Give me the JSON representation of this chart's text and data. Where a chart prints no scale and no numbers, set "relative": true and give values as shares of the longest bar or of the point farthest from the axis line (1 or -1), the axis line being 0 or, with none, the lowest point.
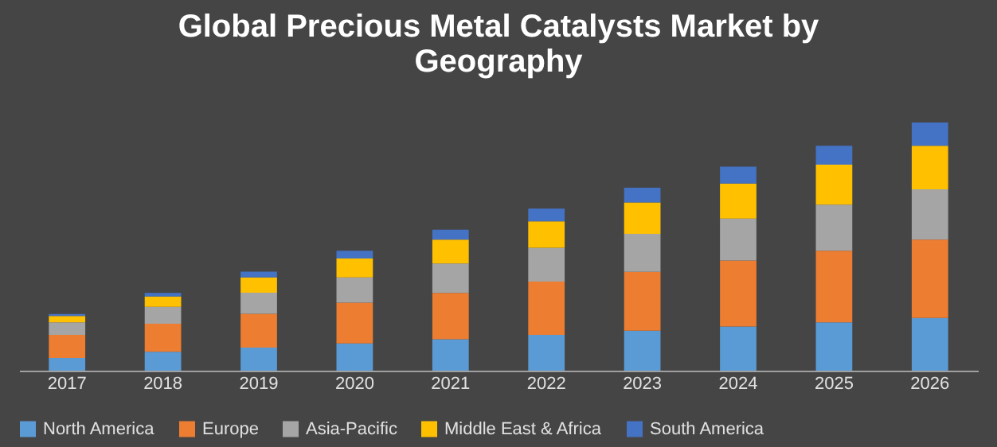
{
  "chart_data": {
    "type": "bar",
    "title": "Global Precious Metal Catalysts Market by Geography",
    "stacked": true,
    "relative": true,
    "legend": "bottom",
    "categories": [
      "2017",
      "2018",
      "2019",
      "2020",
      "2021",
      "2022",
      "2023",
      "2024",
      "2025",
      "2026"
    ],
    "series": [
      {
        "name": "North America",
        "color": "#5b9bd5",
        "values": [
          0.051,
          0.076,
          0.093,
          0.11,
          0.127,
          0.144,
          0.161,
          0.178,
          0.195,
          0.212
        ]
      },
      {
        "name": "Europe",
        "color": "#ed7d31",
        "values": [
          0.093,
          0.113,
          0.136,
          0.164,
          0.186,
          0.215,
          0.237,
          0.266,
          0.288,
          0.316
        ]
      },
      {
        "name": "Asia-Pacific",
        "color": "#a5a5a5",
        "values": [
          0.051,
          0.068,
          0.085,
          0.102,
          0.119,
          0.136,
          0.153,
          0.169,
          0.186,
          0.203
        ]
      },
      {
        "name": "Middle East & Africa",
        "color": "#ffc000",
        "values": [
          0.025,
          0.042,
          0.062,
          0.076,
          0.096,
          0.107,
          0.127,
          0.141,
          0.161,
          0.175
        ]
      },
      {
        "name": "South America",
        "color": "#4472c4",
        "values": [
          0.008,
          0.014,
          0.023,
          0.031,
          0.04,
          0.051,
          0.059,
          0.068,
          0.076,
          0.094
        ]
      }
    ]
  }
}
